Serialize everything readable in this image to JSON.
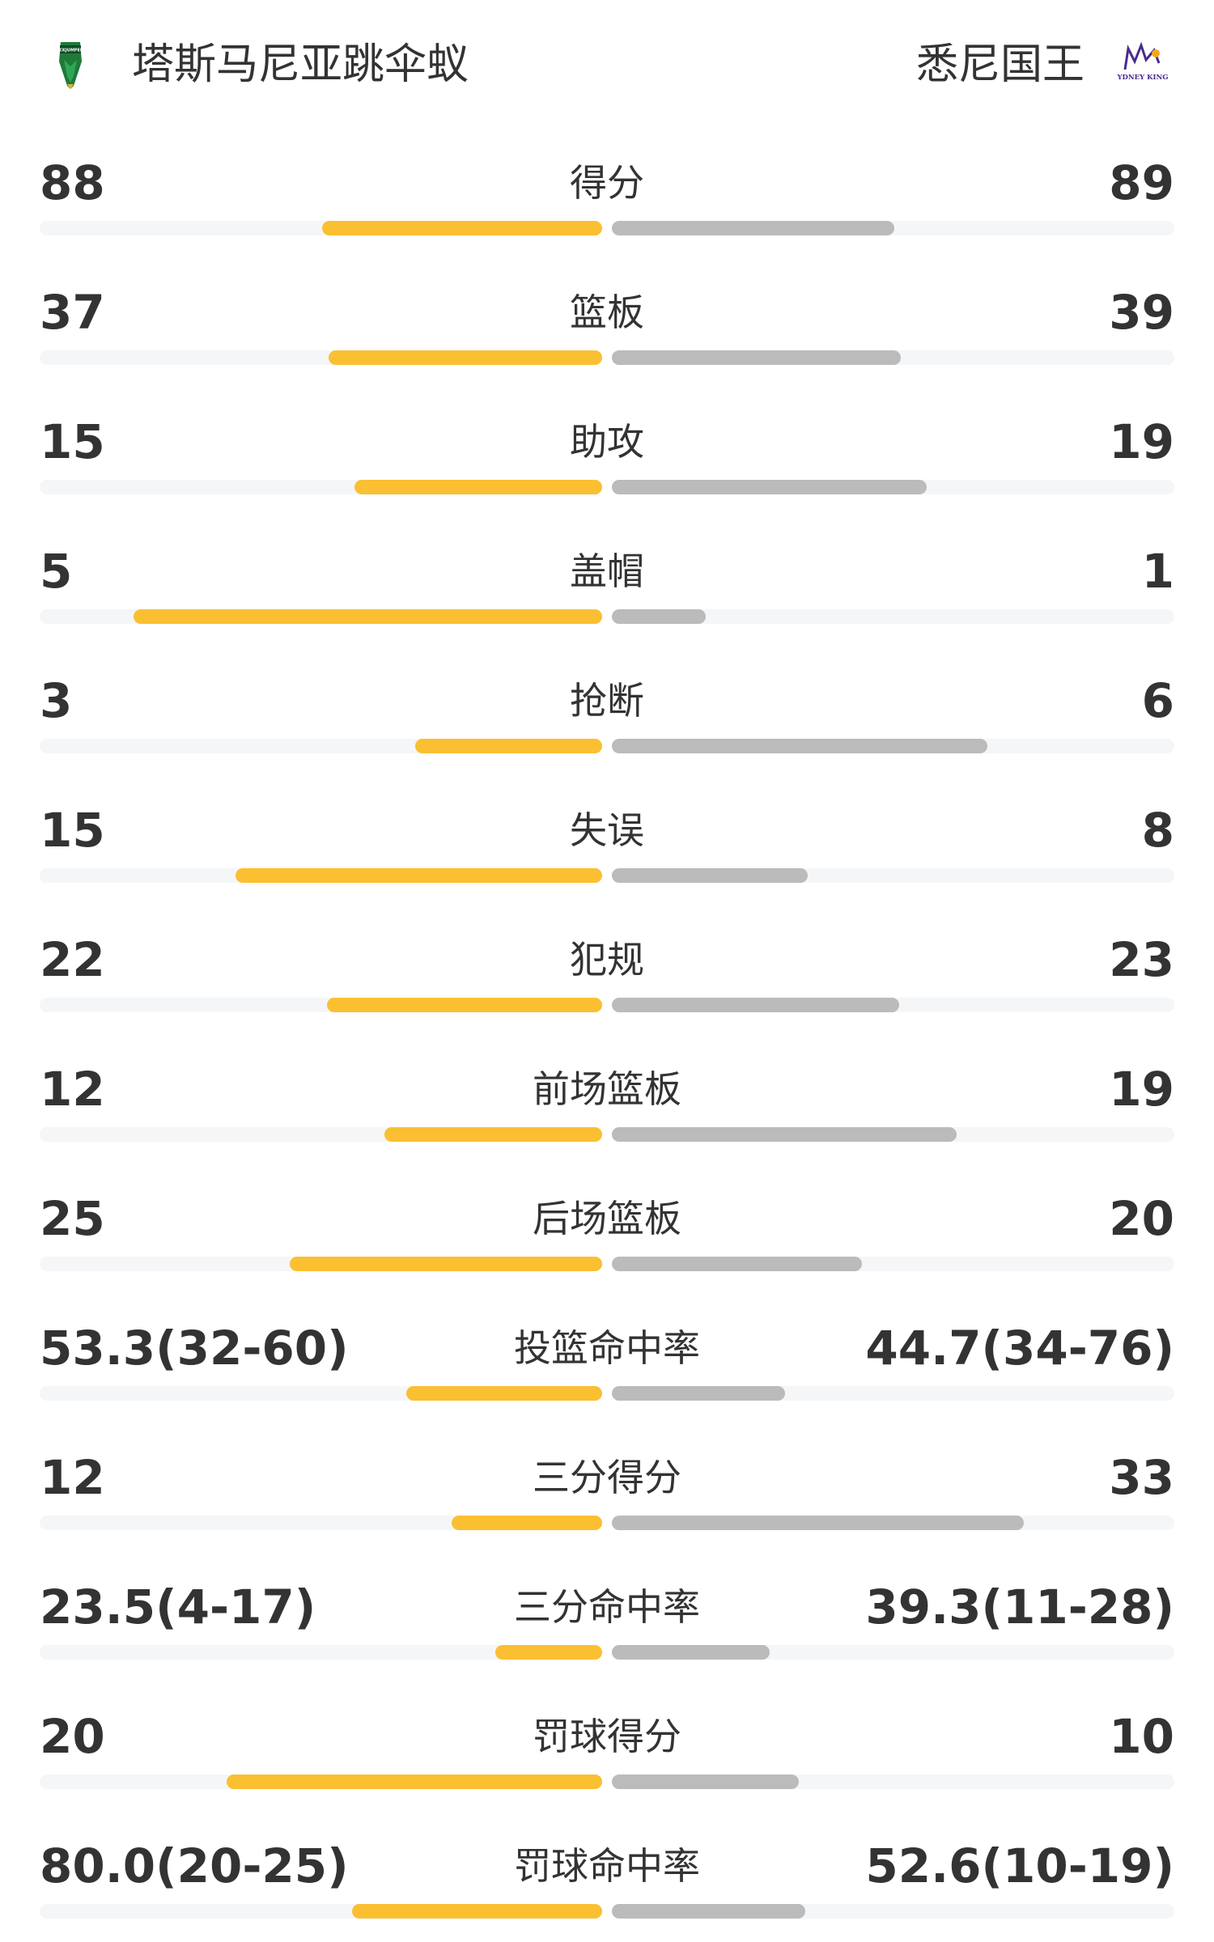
{
  "header": {
    "home_team": "塔斯马尼亚跳伞蚁",
    "away_team": "悉尼国王",
    "home_logo_icon": "tasmania-jackjumpers-logo",
    "away_logo_icon": "sydney-kings-logo",
    "home_logo_text": "JACKJUMPERS",
    "away_logo_text": "SYDNEY KINGS"
  },
  "colors": {
    "home_bar": "#FBBF32",
    "away_bar": "#BBBBBB",
    "track": "#F5F6F8",
    "text": "#333333"
  },
  "stats": [
    {
      "label": "得分",
      "home": "88",
      "away": "89",
      "home_fill": 0.498,
      "away_fill": 0.502
    },
    {
      "label": "篮板",
      "home": "37",
      "away": "39",
      "home_fill": 0.487,
      "away_fill": 0.513
    },
    {
      "label": "助攻",
      "home": "15",
      "away": "19",
      "home_fill": 0.441,
      "away_fill": 0.559
    },
    {
      "label": "盖帽",
      "home": "5",
      "away": "1",
      "home_fill": 0.833,
      "away_fill": 0.167
    },
    {
      "label": "抢断",
      "home": "3",
      "away": "6",
      "home_fill": 0.333,
      "away_fill": 0.667
    },
    {
      "label": "失误",
      "home": "15",
      "away": "8",
      "home_fill": 0.652,
      "away_fill": 0.348
    },
    {
      "label": "犯规",
      "home": "22",
      "away": "23",
      "home_fill": 0.489,
      "away_fill": 0.511
    },
    {
      "label": "前场篮板",
      "home": "12",
      "away": "19",
      "home_fill": 0.387,
      "away_fill": 0.613
    },
    {
      "label": "后场篮板",
      "home": "25",
      "away": "20",
      "home_fill": 0.556,
      "away_fill": 0.444
    },
    {
      "label": "投篮命中率",
      "home": "53.3(32-60)",
      "away": "44.7(34-76)",
      "home_fill": 0.348,
      "away_fill": 0.308
    },
    {
      "label": "三分得分",
      "home": "12",
      "away": "33",
      "home_fill": 0.267,
      "away_fill": 0.733
    },
    {
      "label": "三分命中率",
      "home": "23.5(4-17)",
      "away": "39.3(11-28)",
      "home_fill": 0.19,
      "away_fill": 0.28
    },
    {
      "label": "罚球得分",
      "home": "20",
      "away": "10",
      "home_fill": 0.667,
      "away_fill": 0.333
    },
    {
      "label": "罚球命中率",
      "home": "80.0(20-25)",
      "away": "52.6(10-19)",
      "home_fill": 0.445,
      "away_fill": 0.344
    }
  ]
}
